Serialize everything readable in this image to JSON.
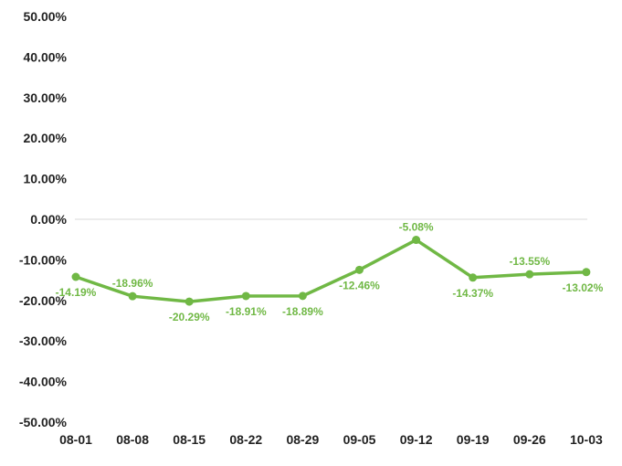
{
  "chart_data": {
    "type": "line",
    "title": "",
    "xlabel": "",
    "ylabel": "",
    "categories": [
      "08-01",
      "08-08",
      "08-15",
      "08-22",
      "08-29",
      "09-05",
      "09-12",
      "09-19",
      "09-26",
      "10-03"
    ],
    "series": [
      {
        "values": [
          -14.19,
          -18.96,
          -20.29,
          -18.91,
          -18.89,
          -12.46,
          -5.08,
          -14.37,
          -13.55,
          -13.02
        ],
        "labels": [
          "-14.19%",
          "-18.96%",
          "-20.29%",
          "-18.91%",
          "-18.89%",
          "-12.46%",
          "-5.08%",
          "-14.37%",
          "-13.55%",
          "-13.02%"
        ],
        "color": "#70b845"
      }
    ],
    "ylim": [
      -50,
      50
    ],
    "yticks": [
      50,
      40,
      30,
      20,
      10,
      0,
      -10,
      -20,
      -30,
      -40,
      -50
    ],
    "ytick_labels": [
      "50.00%",
      "40.00%",
      "30.00%",
      "20.00%",
      "10.00%",
      "0.00%",
      "-10.00%",
      "-20.00%",
      "-30.00%",
      "-40.00%",
      "-50.00%"
    ],
    "grid": false,
    "zero_line": true,
    "legend": "none"
  }
}
